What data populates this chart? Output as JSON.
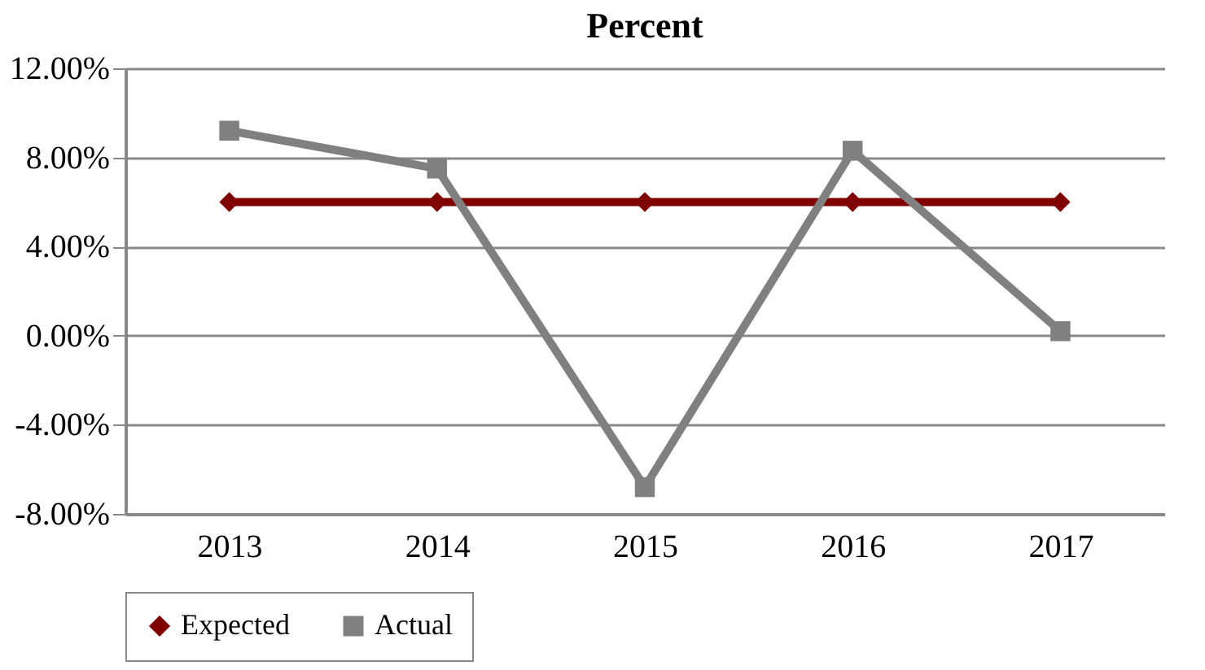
{
  "chart_data": {
    "type": "line",
    "title": "Percent",
    "categories": [
      "2013",
      "2014",
      "2015",
      "2016",
      "2017"
    ],
    "series": [
      {
        "name": "Expected",
        "color": "#800000",
        "marker": "diamond",
        "values": [
          6,
          6,
          6,
          6,
          6
        ]
      },
      {
        "name": "Actual",
        "color": "#808080",
        "marker": "square",
        "values": [
          9.2,
          7.5,
          -6.8,
          8.3,
          0.2
        ]
      }
    ],
    "ylim": [
      -8,
      12
    ],
    "yticks": [
      {
        "value": -8,
        "label": "-8.00%"
      },
      {
        "value": -4,
        "label": "-4.00%"
      },
      {
        "value": 0,
        "label": "0.00%"
      },
      {
        "value": 4,
        "label": "4.00%"
      },
      {
        "value": 8,
        "label": "8.00%"
      },
      {
        "value": 12,
        "label": "12.00%"
      }
    ],
    "grid": "y",
    "legend": "bottom",
    "line_style": "solid"
  }
}
